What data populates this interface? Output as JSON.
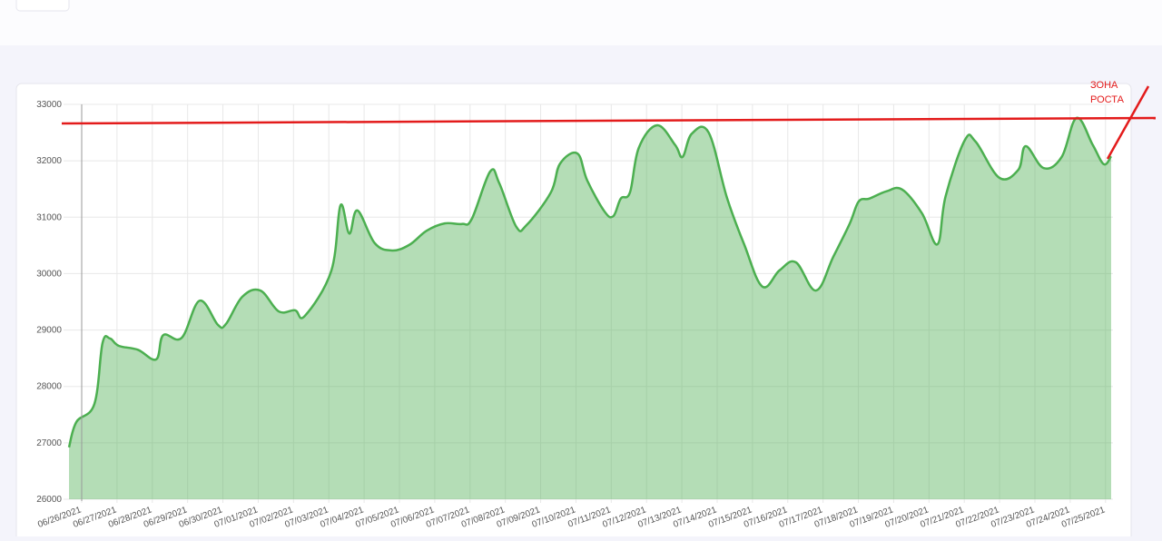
{
  "chart_data": {
    "type": "area",
    "annotation": [
      "ЗОНА",
      "РОСТА"
    ],
    "grid": true,
    "xlim": [
      -0.36,
      29.16
    ],
    "ylim": [
      26000,
      33000
    ],
    "yticks": [
      26000,
      27000,
      28000,
      29000,
      30000,
      31000,
      32000,
      33000
    ],
    "xticks": [
      {
        "value": 0,
        "label": "06/26/2021"
      },
      {
        "value": 1,
        "label": "06/27/2021"
      },
      {
        "value": 2,
        "label": "06/28/2021"
      },
      {
        "value": 3,
        "label": "06/29/2021"
      },
      {
        "value": 4,
        "label": "06/30/2021"
      },
      {
        "value": 5,
        "label": "07/01/2021"
      },
      {
        "value": 6,
        "label": "07/02/2021"
      },
      {
        "value": 7,
        "label": "07/03/2021"
      },
      {
        "value": 8,
        "label": "07/04/2021"
      },
      {
        "value": 9,
        "label": "07/05/2021"
      },
      {
        "value": 10,
        "label": "07/06/2021"
      },
      {
        "value": 11,
        "label": "07/07/2021"
      },
      {
        "value": 12,
        "label": "07/08/2021"
      },
      {
        "value": 13,
        "label": "07/09/2021"
      },
      {
        "value": 14,
        "label": "07/10/2021"
      },
      {
        "value": 15,
        "label": "07/11/2021"
      },
      {
        "value": 16,
        "label": "07/12/2021"
      },
      {
        "value": 17,
        "label": "07/13/2021"
      },
      {
        "value": 18,
        "label": "07/14/2021"
      },
      {
        "value": 19,
        "label": "07/15/2021"
      },
      {
        "value": 20,
        "label": "07/16/2021"
      },
      {
        "value": 21,
        "label": "07/17/2021"
      },
      {
        "value": 22,
        "label": "07/18/2021"
      },
      {
        "value": 23,
        "label": "07/19/2021"
      },
      {
        "value": 24,
        "label": "07/20/2021"
      },
      {
        "value": 25,
        "label": "07/21/2021"
      },
      {
        "value": 26,
        "label": "07/22/2021"
      },
      {
        "value": 27,
        "label": "07/23/2021"
      },
      {
        "value": 28,
        "label": "07/24/2021"
      },
      {
        "value": 29,
        "label": "07/25/2021"
      }
    ],
    "series": [
      {
        "color": "#4caf50",
        "x": [
          -0.36,
          -0.15,
          0.36,
          0.59,
          0.8,
          1.05,
          1.59,
          2.11,
          2.31,
          2.83,
          3.34,
          3.86,
          4.09,
          4.55,
          5.06,
          5.58,
          6.04,
          6.32,
          7.07,
          7.33,
          7.58,
          7.81,
          8.3,
          8.79,
          9.28,
          9.77,
          10.28,
          10.77,
          11.05,
          11.57,
          11.83,
          12.31,
          12.6,
          13.29,
          13.55,
          14.04,
          14.32,
          14.81,
          15.06,
          15.27,
          15.53,
          15.78,
          16.3,
          16.81,
          17.02,
          17.28,
          17.76,
          18.28,
          18.77,
          19.28,
          19.77,
          20.23,
          20.8,
          21.29,
          21.75,
          22.01,
          22.31,
          22.8,
          23.24,
          23.8,
          24.24,
          24.47,
          25.01,
          25.32,
          25.99,
          26.53,
          26.74,
          27.25,
          27.76,
          28.18,
          28.64,
          28.95,
          29.16
        ],
        "values": [
          26920,
          27370,
          27690,
          28770,
          28850,
          28720,
          28650,
          28480,
          28910,
          28860,
          29520,
          29090,
          29110,
          29590,
          29700,
          29330,
          29350,
          29250,
          30050,
          31210,
          30710,
          31120,
          30540,
          30410,
          30510,
          30760,
          30890,
          30880,
          30970,
          31810,
          31600,
          30830,
          30860,
          31440,
          31950,
          32130,
          31650,
          31100,
          31020,
          31330,
          31440,
          32230,
          32630,
          32280,
          32070,
          32480,
          32500,
          31340,
          30510,
          29770,
          30060,
          30200,
          29700,
          30300,
          30880,
          31280,
          31330,
          31460,
          31490,
          31070,
          30520,
          31370,
          32360,
          32340,
          31700,
          31840,
          32260,
          31870,
          32070,
          32760,
          32280,
          31940,
          32080
        ]
      }
    ]
  }
}
